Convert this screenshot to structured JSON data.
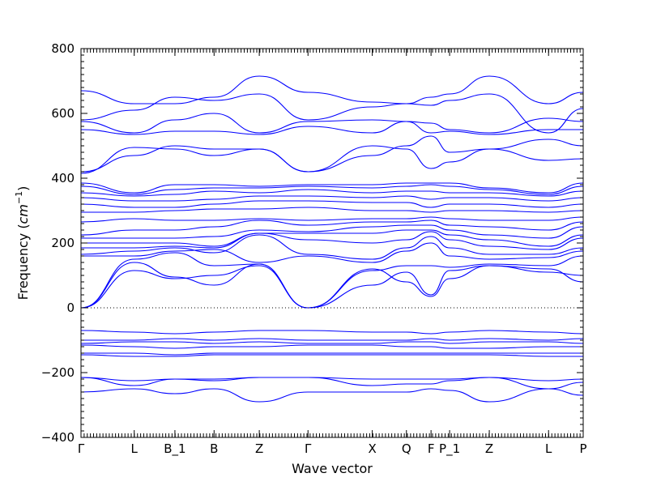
{
  "chart_data": {
    "type": "line",
    "title": "",
    "xlabel": "Wave vector",
    "ylabel_main": "Frequency (",
    "ylabel_unit": "cm",
    "ylabel_exp": "−1",
    "ylabel_close": ")",
    "ylim": [
      -400,
      800
    ],
    "yticks": [
      -400,
      -200,
      0,
      200,
      400,
      600,
      800
    ],
    "ytick_labels": [
      "−400",
      "−200",
      "0",
      "200",
      "400",
      "600",
      "800"
    ],
    "xlim": [
      0,
      1
    ],
    "kpoints": [
      {
        "label": "Γ",
        "x": 0.0
      },
      {
        "label": "L",
        "x": 0.106
      },
      {
        "label": "B_1",
        "x": 0.187
      },
      {
        "label": "B",
        "x": 0.265
      },
      {
        "label": "Z",
        "x": 0.355
      },
      {
        "label": "Γ",
        "x": 0.452
      },
      {
        "label": "X",
        "x": 0.58
      },
      {
        "label": "Q",
        "x": 0.648
      },
      {
        "label": "F",
        "x": 0.697
      },
      {
        "label": "P_1",
        "x": 0.734
      },
      {
        "label": "Z",
        "x": 0.813
      },
      {
        "label": "L",
        "x": 0.931
      },
      {
        "label": "P",
        "x": 1.0
      }
    ],
    "zero_line": true,
    "line_color": "#0000ff",
    "x": [
      0.0,
      0.106,
      0.187,
      0.265,
      0.355,
      0.452,
      0.58,
      0.648,
      0.697,
      0.734,
      0.813,
      0.931,
      1.0
    ],
    "series": [
      {
        "values": [
          0,
          115,
          90,
          100,
          130,
          0,
          120,
          80,
          35,
          90,
          130,
          120,
          80
        ]
      },
      {
        "values": [
          0,
          140,
          95,
          70,
          135,
          0,
          70,
          110,
          40,
          115,
          130,
          110,
          100
        ]
      },
      {
        "values": [
          0,
          150,
          170,
          130,
          135,
          0,
          115,
          130,
          130,
          125,
          135,
          130,
          160
        ]
      },
      {
        "values": [
          160,
          160,
          175,
          180,
          140,
          160,
          140,
          175,
          200,
          160,
          150,
          155,
          175
        ]
      },
      {
        "values": [
          165,
          175,
          185,
          170,
          225,
          165,
          150,
          185,
          220,
          185,
          165,
          165,
          185
        ]
      },
      {
        "values": [
          185,
          185,
          190,
          185,
          230,
          210,
          200,
          210,
          235,
          210,
          190,
          180,
          215
        ]
      },
      {
        "values": [
          200,
          200,
          200,
          190,
          230,
          230,
          230,
          240,
          240,
          225,
          210,
          190,
          225
        ]
      },
      {
        "values": [
          215,
          215,
          215,
          220,
          240,
          235,
          250,
          255,
          255,
          240,
          225,
          215,
          250
        ]
      },
      {
        "values": [
          225,
          240,
          240,
          250,
          270,
          255,
          265,
          265,
          270,
          255,
          250,
          240,
          265
        ]
      },
      {
        "values": [
          265,
          275,
          270,
          270,
          275,
          270,
          275,
          275,
          280,
          275,
          270,
          270,
          280
        ]
      },
      {
        "values": [
          295,
          295,
          300,
          305,
          305,
          310,
          300,
          300,
          295,
          300,
          300,
          295,
          300
        ]
      },
      {
        "values": [
          320,
          310,
          310,
          320,
          330,
          330,
          325,
          325,
          310,
          320,
          320,
          310,
          320
        ]
      },
      {
        "values": [
          340,
          330,
          330,
          335,
          345,
          345,
          340,
          345,
          335,
          340,
          340,
          330,
          340
        ]
      },
      {
        "values": [
          355,
          345,
          350,
          360,
          355,
          365,
          355,
          360,
          360,
          355,
          355,
          345,
          360
        ]
      },
      {
        "values": [
          375,
          350,
          365,
          370,
          370,
          375,
          370,
          375,
          380,
          375,
          365,
          350,
          375
        ]
      },
      {
        "values": [
          385,
          355,
          380,
          380,
          375,
          380,
          380,
          385,
          385,
          385,
          370,
          355,
          385
        ]
      },
      {
        "values": [
          415,
          495,
          490,
          470,
          490,
          420,
          500,
          490,
          430,
          450,
          490,
          455,
          460
        ]
      },
      {
        "values": [
          420,
          470,
          500,
          490,
          490,
          420,
          470,
          500,
          530,
          480,
          490,
          520,
          500
        ]
      },
      {
        "values": [
          550,
          535,
          545,
          545,
          535,
          560,
          540,
          575,
          540,
          545,
          535,
          550,
          550
        ]
      },
      {
        "values": [
          575,
          540,
          580,
          600,
          540,
          575,
          580,
          575,
          570,
          550,
          540,
          585,
          575
        ]
      },
      {
        "values": [
          580,
          610,
          650,
          640,
          660,
          580,
          620,
          630,
          625,
          640,
          660,
          540,
          615
        ]
      },
      {
        "values": [
          670,
          630,
          630,
          650,
          715,
          665,
          635,
          630,
          650,
          660,
          715,
          630,
          665
        ]
      },
      {
        "values": [
          -70,
          -75,
          -80,
          -75,
          -70,
          -70,
          -75,
          -75,
          -80,
          -75,
          -70,
          -75,
          -80
        ]
      },
      {
        "values": [
          -100,
          -100,
          -95,
          -100,
          -95,
          -100,
          -100,
          -100,
          -95,
          -100,
          -95,
          -100,
          -95
        ]
      },
      {
        "values": [
          -110,
          -105,
          -105,
          -110,
          -105,
          -110,
          -110,
          -105,
          -105,
          -110,
          -105,
          -105,
          -110
        ]
      },
      {
        "values": [
          -115,
          -120,
          -125,
          -120,
          -120,
          -115,
          -115,
          -120,
          -120,
          -125,
          -125,
          -120,
          -120
        ]
      },
      {
        "values": [
          -140,
          -140,
          -145,
          -140,
          -140,
          -140,
          -140,
          -140,
          -140,
          -140,
          -140,
          -140,
          -140
        ]
      },
      {
        "values": [
          -145,
          -150,
          -150,
          -145,
          -145,
          -145,
          -145,
          -145,
          -145,
          -145,
          -145,
          -150,
          -150
        ]
      },
      {
        "values": [
          -215,
          -225,
          -220,
          -220,
          -215,
          -215,
          -220,
          -220,
          -220,
          -220,
          -215,
          -225,
          -220
        ]
      },
      {
        "values": [
          -215,
          -240,
          -220,
          -225,
          -215,
          -215,
          -240,
          -235,
          -235,
          -225,
          -215,
          -250,
          -230
        ]
      },
      {
        "values": [
          -260,
          -250,
          -265,
          -250,
          -290,
          -260,
          -260,
          -260,
          -250,
          -255,
          -290,
          -250,
          -270
        ]
      }
    ]
  }
}
